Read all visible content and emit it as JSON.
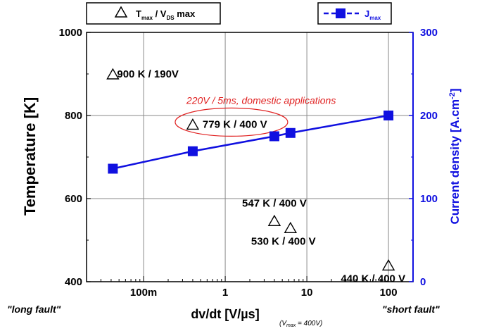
{
  "chart_data": {
    "type": "scatter",
    "x_scale": "log",
    "xlim": [
      0.02,
      200
    ],
    "x_ticks": [
      0.1,
      1,
      10,
      100
    ],
    "x_tick_labels": [
      "100m",
      "1",
      "10",
      "100"
    ],
    "xlabel": "dv/dt [V/µs]",
    "xlabel_note_prefix": "(V",
    "xlabel_note_sub": "max",
    "xlabel_note_suffix": " = 400V)",
    "ylabel_left": "Temperature [K]",
    "ylim_left": [
      400,
      1000
    ],
    "yticks_left": [
      "400",
      "600",
      "800",
      "1000"
    ],
    "ylabel_right_main": "Current density [A.cm",
    "ylabel_right_sup": "-2",
    "ylabel_right_close": "]",
    "ylim_right": [
      0,
      300
    ],
    "yticks_right": [
      "0",
      "100",
      "200",
      "300"
    ],
    "grid": true,
    "series": [
      {
        "name_main": "T",
        "name_sub1": "max",
        "name_mid": " / V",
        "name_sub2": "DS",
        "name_tail": " max",
        "axis": "left",
        "marker": "open-triangle",
        "color": "#000000",
        "points": [
          {
            "x": 0.042,
            "y": 900,
            "label": "900 K / 190V"
          },
          {
            "x": 0.4,
            "y": 779,
            "label": "779 K / 400 V"
          },
          {
            "x": 4,
            "y": 547,
            "label": "547 K / 400 V"
          },
          {
            "x": 6.3,
            "y": 530,
            "label": "530 K / 400 V"
          },
          {
            "x": 100,
            "y": 440,
            "label": "440 K / 400 V"
          }
        ]
      },
      {
        "name_main": "J",
        "name_sub1": "max",
        "axis": "right",
        "marker": "filled-square",
        "line": true,
        "color": "#1010e0",
        "points": [
          {
            "x": 0.042,
            "y": 136
          },
          {
            "x": 0.4,
            "y": 157
          },
          {
            "x": 4,
            "y": 175
          },
          {
            "x": 6.3,
            "y": 179
          },
          {
            "x": 100,
            "y": 200
          }
        ]
      }
    ],
    "annotations": {
      "highlight_note": "220V / 5ms, domestic applications",
      "highlight_color": "#e02020",
      "left_corner": "\"long fault\"",
      "right_corner": "\"short fault\""
    }
  }
}
